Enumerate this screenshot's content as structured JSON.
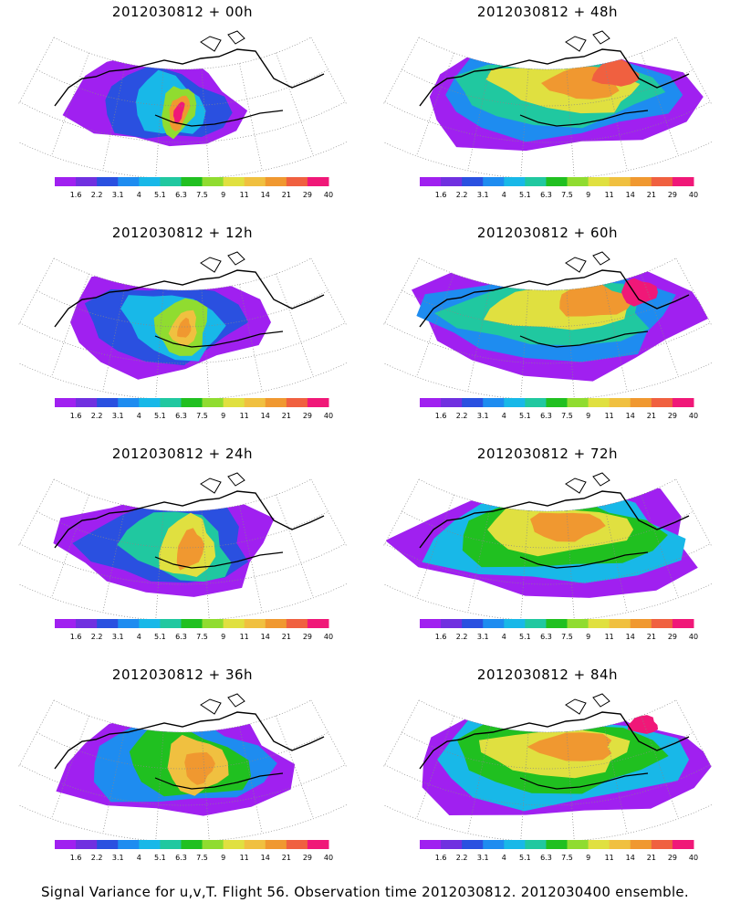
{
  "panels": [
    {
      "title": "2012030812 + 00h"
    },
    {
      "title": "2012030812 + 48h"
    },
    {
      "title": "2012030812 + 12h"
    },
    {
      "title": "2012030812 + 60h"
    },
    {
      "title": "2012030812 + 24h"
    },
    {
      "title": "2012030812 + 72h"
    },
    {
      "title": "2012030812 + 36h"
    },
    {
      "title": "2012030812 + 84h"
    }
  ],
  "colorbar": {
    "labels": [
      "1.6",
      "2.2",
      "3.1",
      "4",
      "5.1",
      "6.3",
      "7.5",
      "9",
      "11",
      "14",
      "21",
      "29",
      "40"
    ],
    "colors": [
      "#a020f0",
      "#7030e0",
      "#2a50e0",
      "#1e8cf0",
      "#18b8e8",
      "#20c8a0",
      "#20c020",
      "#90dc30",
      "#e0e040",
      "#f0c040",
      "#f09830",
      "#f06040",
      "#f01878"
    ]
  },
  "caption": "Signal Variance for u,v,T. Flight 56. Observation time 2012030812. 2012030400 ensemble."
}
